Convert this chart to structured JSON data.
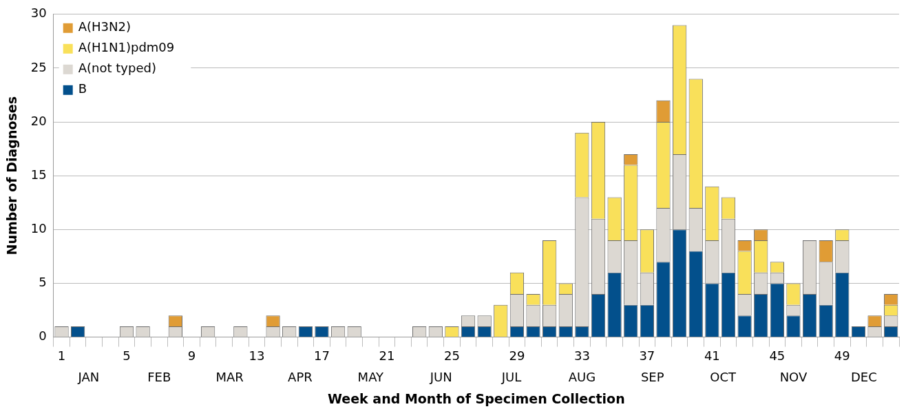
{
  "chart_data": {
    "type": "bar",
    "stacked": true,
    "xlabel": "Week and Month of Specimen Collection",
    "ylabel": "Number of Diagnoses",
    "categories": [
      "1",
      null,
      null,
      null,
      "5",
      null,
      null,
      null,
      "9",
      null,
      null,
      null,
      "13",
      null,
      null,
      null,
      "17",
      null,
      null,
      null,
      "21",
      null,
      null,
      null,
      "25",
      null,
      null,
      null,
      "29",
      null,
      null,
      null,
      "33",
      null,
      null,
      null,
      "37",
      null,
      null,
      null,
      "41",
      null,
      null,
      null,
      "45",
      null,
      null,
      null,
      "49",
      null,
      null,
      null
    ],
    "series": [
      {
        "name": "B",
        "color": "#03508c",
        "values": [
          0,
          1,
          0,
          0,
          0,
          0,
          0,
          0,
          0,
          0,
          0,
          0,
          0,
          0,
          0,
          1,
          1,
          0,
          0,
          0,
          0,
          0,
          0,
          0,
          0,
          1,
          1,
          0,
          1,
          1,
          1,
          1,
          1,
          4,
          6,
          3,
          3,
          7,
          10,
          8,
          5,
          6,
          2,
          4,
          5,
          2,
          4,
          3,
          6,
          1,
          0,
          1
        ]
      },
      {
        "name": "A(not typed)",
        "color": "#dcd8d2",
        "values": [
          1,
          0,
          0,
          0,
          1,
          1,
          0,
          1,
          0,
          1,
          0,
          1,
          0,
          1,
          1,
          0,
          0,
          1,
          1,
          0,
          0,
          0,
          1,
          1,
          0,
          1,
          1,
          0,
          3,
          2,
          2,
          3,
          12,
          7,
          3,
          6,
          3,
          5,
          7,
          4,
          4,
          5,
          2,
          2,
          1,
          1,
          5,
          4,
          3,
          0,
          1,
          1
        ]
      },
      {
        "name": "A(H1N1)pdm09",
        "color": "#f9e05a",
        "values": [
          0,
          0,
          0,
          0,
          0,
          0,
          0,
          0,
          0,
          0,
          0,
          0,
          0,
          0,
          0,
          0,
          0,
          0,
          0,
          0,
          0,
          0,
          0,
          0,
          1,
          0,
          0,
          3,
          2,
          1,
          6,
          1,
          6,
          9,
          4,
          7,
          4,
          8,
          12,
          12,
          5,
          2,
          4,
          3,
          1,
          2,
          0,
          0,
          1,
          0,
          0,
          1
        ]
      },
      {
        "name": "A(H3N2)",
        "color": "#e09c35",
        "values": [
          0,
          0,
          0,
          0,
          0,
          0,
          0,
          1,
          0,
          0,
          0,
          0,
          0,
          1,
          0,
          0,
          0,
          0,
          0,
          0,
          0,
          0,
          0,
          0,
          0,
          0,
          0,
          0,
          0,
          0,
          0,
          0,
          0,
          0,
          0,
          1,
          0,
          2,
          0,
          0,
          0,
          0,
          1,
          1,
          0,
          0,
          0,
          2,
          0,
          0,
          1,
          1
        ]
      }
    ],
    "ylim": [
      0,
      30
    ],
    "yticks": [
      0,
      5,
      10,
      15,
      20,
      25,
      30
    ],
    "grid": "y",
    "legend": "top left",
    "annotations": [
      "JAN",
      "FEB",
      "MAR",
      "APR",
      "MAY",
      "JUN",
      "JUL",
      "AUG",
      "SEP",
      "OCT",
      "NOV",
      "DEC"
    ]
  }
}
